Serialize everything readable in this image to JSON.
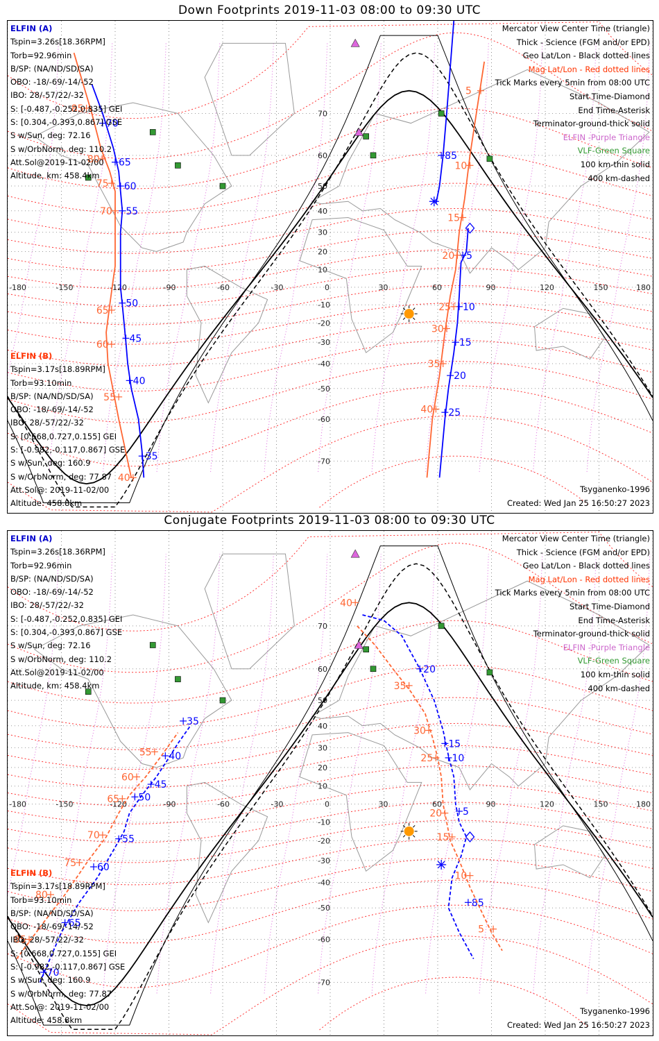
{
  "panels": {
    "down": {
      "title": "Down Footprints 2019-11-03 08:00 to 09:30 UTC"
    },
    "conj": {
      "title": "Conjugate Footprints 2019-11-03 08:00 to 09:30 UTC"
    }
  },
  "elfin_a": {
    "label": "ELFIN (A)",
    "lines": [
      "Tspin=3.26s[18.36RPM]",
      "Torb=92.96min",
      "B/SP: (NA/ND/SD/SA)",
      "OBO: -18/-69/-14/-52",
      "IBO: 28/-57/22/-32",
      "S: [-0.487,-0.252,0.835] GEI",
      "S: [0.304,-0.393,0.867] GSE",
      "S w/Sun, deg: 72.16",
      "S w/OrbNorm, deg: 110.2",
      "Att.Sol@2019-11-02/00",
      "Altitude, km: 458.4km"
    ]
  },
  "elfin_b": {
    "label": "ELFIN (B)",
    "lines": [
      "Tspin=3.17s[18.89RPM]",
      "Torb=93.10min",
      "B/SP: (NA/ND/SD/SA)",
      "OBO: -18/-69/-14/-52",
      "IBO: 28/-57/22/-32",
      "S: [0.668,0.727,0.155] GEI",
      "S: [-0.982,-0.117,0.867] GSE",
      "S w/Sun, deg: 160.9",
      "S w/OrbNorm, deg: 77.87",
      "Att.Sol@: 2019-11-02/00",
      "Altitude: 458.8km"
    ]
  },
  "legend": [
    {
      "text": "Mercator View Center Time (triangle)",
      "color": "#000000"
    },
    {
      "text": "Thick - Science (FGM and/or EPD)",
      "color": "#000000"
    },
    {
      "text": "Geo Lat/Lon - Black dotted lines",
      "color": "#000000"
    },
    {
      "text": "Mag Lat/Lon - Red dotted lines",
      "color": "#ff3300"
    },
    {
      "text": "Tick Marks every 5min from 08:00 UTC",
      "color": "#000000"
    },
    {
      "text": "Start Time-Diamond",
      "color": "#000000"
    },
    {
      "text": "End Time-Asterisk",
      "color": "#000000"
    },
    {
      "text": "Terminator-ground-thick solid",
      "color": "#000000"
    },
    {
      "text": "ELFIN -Purple Triangle",
      "color": "#cc66cc"
    },
    {
      "text": "VLF-Green Square",
      "color": "#339933"
    },
    {
      "text": "100 km-thin solid",
      "color": "#000000"
    },
    {
      "text": "400 km-dashed",
      "color": "#000000"
    }
  ],
  "footer": {
    "model": "Tsyganenko-1996",
    "created": "Created: Wed Jan 25 16:50:27 2023"
  },
  "axes": {
    "lon_ticks": [
      "-180",
      "-150",
      "-120",
      "-90",
      "-60",
      "-30",
      "0",
      "30",
      "60",
      "90",
      "120",
      "150",
      "180"
    ],
    "lat_ticks": [
      "70",
      "60",
      "50",
      "40",
      "30",
      "20",
      "10",
      "-10",
      "-20",
      "-30",
      "-40",
      "-50",
      "-60",
      "-70"
    ]
  },
  "map_data": {
    "projection": "Mercator",
    "lon_range": [
      -180,
      180
    ],
    "lat_range": [
      -78,
      82
    ],
    "colors": {
      "elfin_a": "#0000ff",
      "elfin_b": "#ff6633",
      "site": "#339933",
      "elfin_marker": "#dd66dd",
      "sun": "#ff9900"
    },
    "vlf_sites": [
      [
        -99,
        66
      ],
      [
        -85,
        57
      ],
      [
        -60,
        50
      ],
      [
        62,
        70
      ],
      [
        20,
        65
      ],
      [
        24,
        60
      ],
      [
        89,
        59
      ],
      [
        -135,
        53
      ]
    ],
    "elfin_markers": [
      [
        14,
        80
      ],
      [
        16,
        66
      ]
    ],
    "sun": [
      44,
      -15
    ],
    "down": {
      "a_west": {
        "track": [
          [
            -133,
            75
          ],
          [
            -127,
            70
          ],
          [
            -121,
            62
          ],
          [
            -118,
            55
          ],
          [
            -117,
            48
          ],
          [
            -116,
            40
          ],
          [
            -117,
            30
          ],
          [
            -117,
            10
          ],
          [
            -117,
            0
          ],
          [
            -116,
            -10
          ],
          [
            -114,
            -30
          ],
          [
            -113,
            -40
          ],
          [
            -111,
            -50
          ],
          [
            -107,
            -60
          ],
          [
            -105,
            -68
          ],
          [
            -104,
            -73
          ]
        ],
        "ticks": [
          {
            "m": 70,
            "lon": -127,
            "lat": 68
          },
          {
            "m": 65,
            "lon": -120,
            "lat": 58
          },
          {
            "m": 60,
            "lon": -117,
            "lat": 50
          },
          {
            "m": 55,
            "lon": -116,
            "lat": 40
          },
          {
            "m": 50,
            "lon": -116,
            "lat": -9
          },
          {
            "m": 45,
            "lon": -114,
            "lat": -28
          },
          {
            "m": 40,
            "lon": -112,
            "lat": -47
          },
          {
            "m": 35,
            "lon": -105,
            "lat": -69
          }
        ]
      },
      "b_west": {
        "track": [
          [
            -143,
            79
          ],
          [
            -133,
            70
          ],
          [
            -128,
            62
          ],
          [
            -123,
            55
          ],
          [
            -120,
            48
          ],
          [
            -120,
            40
          ],
          [
            -120,
            25
          ],
          [
            -120,
            12
          ],
          [
            -121,
            5
          ],
          [
            -123,
            -10
          ],
          [
            -125,
            -25
          ],
          [
            -124,
            -40
          ],
          [
            -118,
            -60
          ],
          [
            -113,
            -70
          ],
          [
            -111,
            -73
          ]
        ],
        "ticks": [
          {
            "m": 85,
            "lon": -136,
            "lat": 71
          },
          {
            "m": 80,
            "lon": -127,
            "lat": 59
          },
          {
            "m": 75,
            "lon": -122,
            "lat": 51
          },
          {
            "m": 70,
            "lon": -120,
            "lat": 40
          },
          {
            "m": 65,
            "lon": -122,
            "lat": -13
          },
          {
            "m": 60,
            "lon": -122,
            "lat": -31
          },
          {
            "m": 55,
            "lon": -118,
            "lat": -53
          },
          {
            "m": 40,
            "lon": -110,
            "lat": -73
          }
        ]
      },
      "a_east": {
        "track": [
          [
            59,
            43
          ],
          [
            61,
            50
          ],
          [
            63,
            60
          ],
          [
            65,
            70
          ],
          [
            69,
            82
          ]
        ],
        "ticks": [
          {
            "m": 85,
            "lon": 62,
            "lat": 60
          }
        ]
      },
      "a_east2": {
        "track": [
          [
            77,
            32
          ],
          [
            76,
            20
          ],
          [
            73,
            14
          ],
          [
            72,
            -5
          ],
          [
            71,
            -20
          ],
          [
            69,
            -35
          ],
          [
            66,
            -50
          ],
          [
            64,
            -60
          ],
          [
            61,
            -73
          ]
        ],
        "ticks": [
          {
            "m": 5,
            "lon": 74,
            "lat": 18
          },
          {
            "m": 10,
            "lon": 72,
            "lat": -11
          },
          {
            "m": 15,
            "lon": 70,
            "lat": -30
          },
          {
            "m": 20,
            "lon": 67,
            "lat": -45
          },
          {
            "m": 25,
            "lon": 64,
            "lat": -58
          }
        ]
      },
      "b_east": {
        "track": [
          [
            86,
            78
          ],
          [
            82,
            71
          ],
          [
            78,
            60
          ],
          [
            75,
            45
          ],
          [
            72,
            30
          ],
          [
            70,
            10
          ],
          [
            67,
            -5
          ],
          [
            64,
            -25
          ],
          [
            61,
            -45
          ],
          [
            57,
            -60
          ],
          [
            54,
            -73
          ]
        ],
        "ticks": [
          {
            "m": 5,
            "lon": 84,
            "lat": 74
          },
          {
            "m": 10,
            "lon": 78,
            "lat": 57
          },
          {
            "m": 15,
            "lon": 74,
            "lat": 37
          },
          {
            "m": 20,
            "lon": 71,
            "lat": 18
          },
          {
            "m": 25,
            "lon": 69,
            "lat": -11
          },
          {
            "m": 30,
            "lon": 65,
            "lat": -23
          },
          {
            "m": 35,
            "lon": 63,
            "lat": -40
          },
          {
            "m": 40,
            "lon": 59,
            "lat": -57
          }
        ]
      },
      "start": [
        78,
        32
      ],
      "end": [
        58,
        44
      ]
    },
    "conj": {
      "a_west": {
        "track": [
          [
            -162,
            -70
          ],
          [
            -150,
            -58
          ],
          [
            -140,
            -48
          ],
          [
            -130,
            -38
          ],
          [
            -121,
            -25
          ],
          [
            -115,
            -15
          ],
          [
            -112,
            -5
          ],
          [
            -105,
            5
          ],
          [
            -97,
            15
          ],
          [
            -90,
            25
          ],
          [
            -85,
            32
          ],
          [
            -78,
            40
          ]
        ],
        "ticks": [
          {
            "m": 70,
            "lon": -160,
            "lat": -68
          },
          {
            "m": 65,
            "lon": -148,
            "lat": -55
          },
          {
            "m": 60,
            "lon": -132,
            "lat": -33
          },
          {
            "m": 55,
            "lon": -118,
            "lat": -19
          },
          {
            "m": 50,
            "lon": -109,
            "lat": 4
          },
          {
            "m": 45,
            "lon": -100,
            "lat": 11
          },
          {
            "m": 40,
            "lon": -92,
            "lat": 26
          },
          {
            "m": 35,
            "lon": -82,
            "lat": 42
          }
        ]
      },
      "b_west": {
        "track": [
          [
            -175,
            -65
          ],
          [
            -160,
            -55
          ],
          [
            -148,
            -45
          ],
          [
            -135,
            -30
          ],
          [
            -125,
            -18
          ],
          [
            -118,
            -5
          ],
          [
            -112,
            5
          ],
          [
            -103,
            15
          ],
          [
            -95,
            25
          ],
          [
            -85,
            37
          ]
        ],
        "ticks": [
          {
            "m": 85,
            "lon": -168,
            "lat": -60
          },
          {
            "m": 80,
            "lon": -156,
            "lat": -45
          },
          {
            "m": 75,
            "lon": -140,
            "lat": -31
          },
          {
            "m": 70,
            "lon": -127,
            "lat": -17
          },
          {
            "m": 65,
            "lon": -116,
            "lat": 3
          },
          {
            "m": 60,
            "lon": -108,
            "lat": 15
          },
          {
            "m": 55,
            "lon": -98,
            "lat": 28
          }
        ]
      },
      "a_east": {
        "track": [
          [
            18,
            72
          ],
          [
            30,
            71
          ],
          [
            40,
            68
          ],
          [
            50,
            60
          ],
          [
            58,
            50
          ],
          [
            63,
            38
          ],
          [
            66,
            26
          ],
          [
            69,
            15
          ],
          [
            70,
            0
          ],
          [
            72,
            -10
          ],
          [
            76,
            -18
          ],
          [
            73,
            -28
          ],
          [
            68,
            -38
          ],
          [
            66,
            -50
          ],
          [
            72,
            -58
          ],
          [
            80,
            -65
          ]
        ],
        "ticks": [
          {
            "m": 20,
            "lon": 50,
            "lat": 60
          },
          {
            "m": 15,
            "lon": 64,
            "lat": 32
          },
          {
            "m": 10,
            "lon": 66,
            "lat": 25
          },
          {
            "m": 5,
            "lon": 72,
            "lat": -4
          },
          {
            "m": 85,
            "lon": 77,
            "lat": -48
          }
        ]
      },
      "b_east": {
        "track": [
          [
            15,
            70
          ],
          [
            25,
            66
          ],
          [
            35,
            60
          ],
          [
            45,
            53
          ],
          [
            53,
            45
          ],
          [
            57,
            35
          ],
          [
            60,
            25
          ],
          [
            62,
            15
          ],
          [
            63,
            0
          ],
          [
            65,
            -10
          ],
          [
            67,
            -20
          ],
          [
            72,
            -30
          ],
          [
            78,
            -42
          ],
          [
            85,
            -52
          ],
          [
            90,
            -58
          ],
          [
            96,
            -63
          ]
        ],
        "ticks": [
          {
            "m": 40,
            "lon": 14,
            "lat": 74
          },
          {
            "m": 35,
            "lon": 44,
            "lat": 55
          },
          {
            "m": 30,
            "lon": 55,
            "lat": 38
          },
          {
            "m": 25,
            "lon": 59,
            "lat": 25
          },
          {
            "m": 20,
            "lon": 64,
            "lat": -5
          },
          {
            "m": 15,
            "lon": 68,
            "lat": -18
          },
          {
            "m": 10,
            "lon": 78,
            "lat": -37
          },
          {
            "m": 5,
            "lon": 91,
            "lat": -57
          }
        ]
      },
      "start": [
        78,
        -18
      ],
      "end": [
        62,
        -32
      ]
    }
  }
}
